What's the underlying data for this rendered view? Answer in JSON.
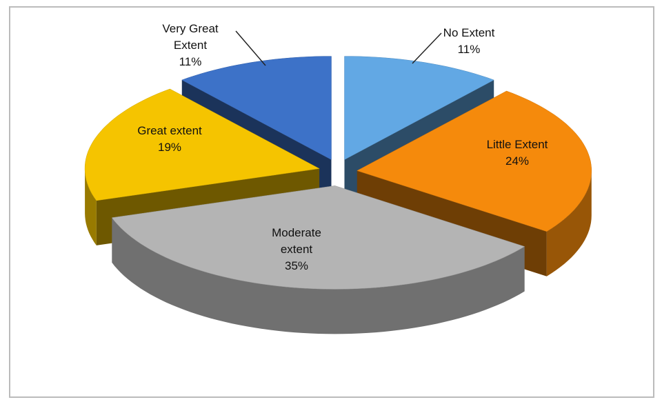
{
  "chart_data": {
    "type": "pie",
    "categories": [
      "No Extent",
      "Little Extent",
      "Moderate extent",
      "Great extent",
      "Very Great Extent"
    ],
    "values": [
      11,
      24,
      35,
      19,
      11
    ],
    "value_labels": [
      "11%",
      "24%",
      "35%",
      "19%",
      "11%"
    ],
    "colors": [
      "#62a8e4",
      "#f58a0c",
      "#b4b4b4",
      "#f5c400",
      "#3d72c8"
    ]
  }
}
